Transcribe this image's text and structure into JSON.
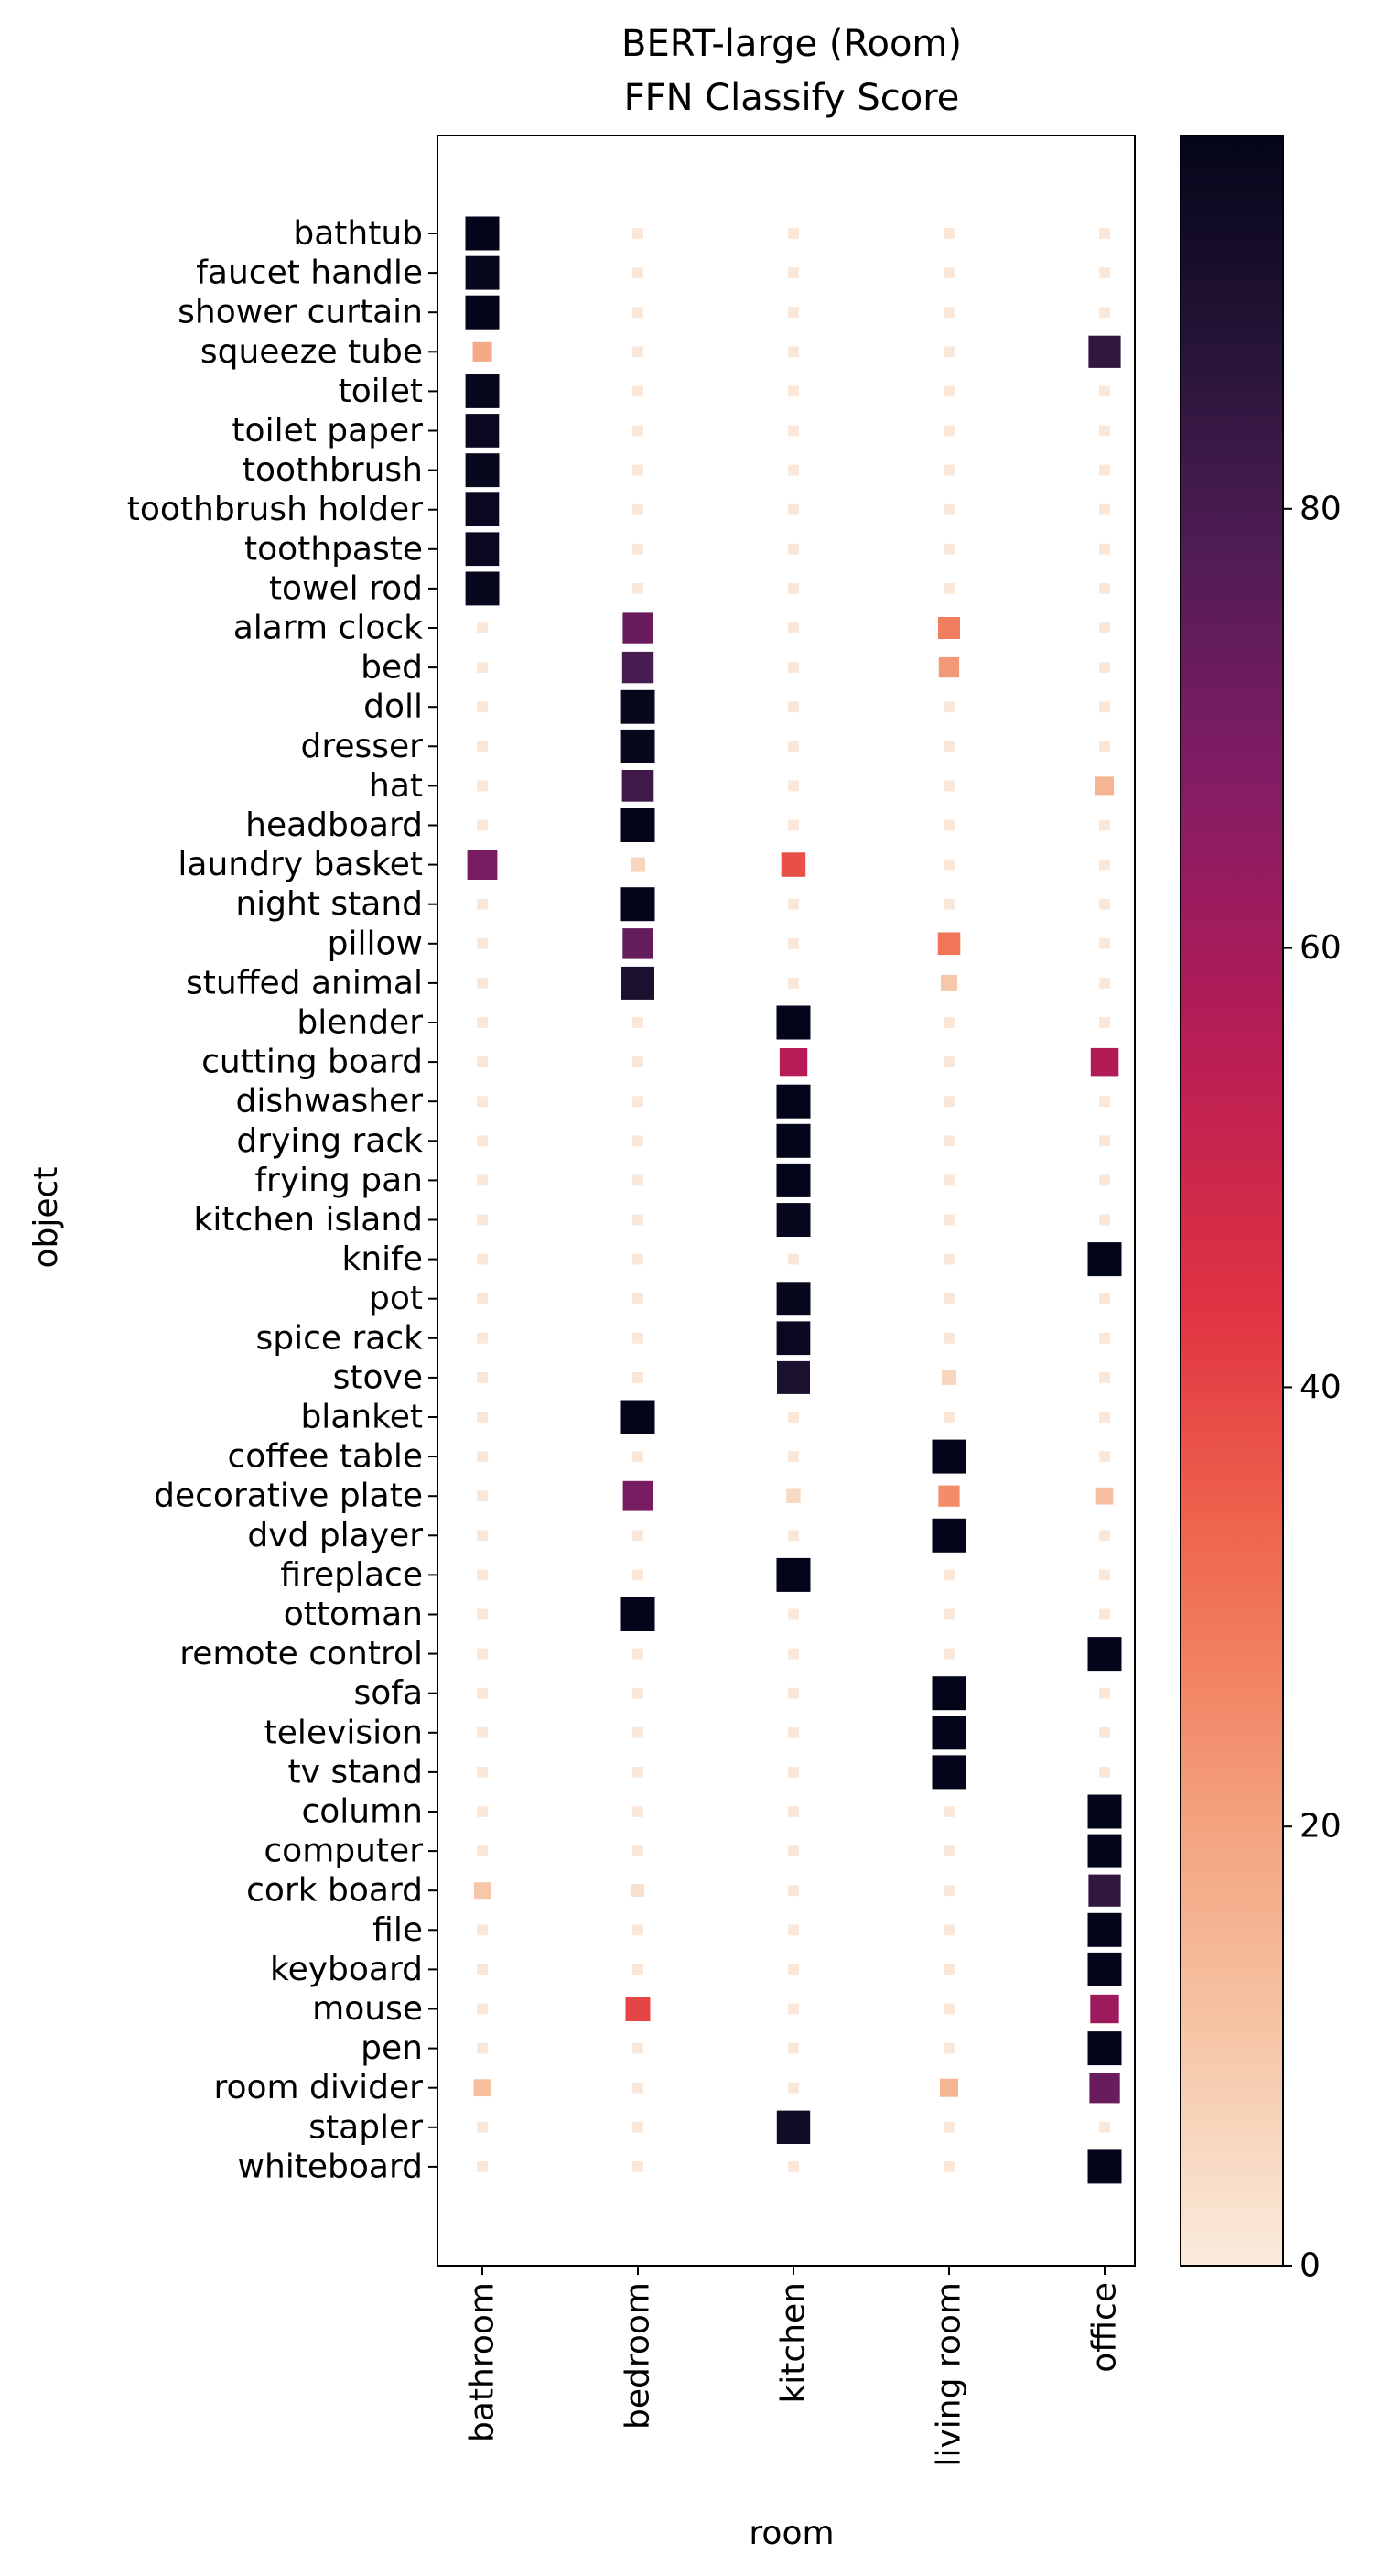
{
  "chart_data": {
    "type": "heatmap",
    "title": "BERT-large (Room)",
    "subtitle": "FFN Classify Score",
    "xlabel": "room",
    "ylabel": "object",
    "x_categories": [
      "bathroom",
      "bedroom",
      "kitchen",
      "living room",
      "office"
    ],
    "y_categories": [
      "bathtub",
      "faucet handle",
      "shower curtain",
      "squeeze tube",
      "toilet",
      "toilet paper",
      "toothbrush",
      "toothbrush holder",
      "toothpaste",
      "towel rod",
      "alarm clock",
      "bed",
      "doll",
      "dresser",
      "hat",
      "headboard",
      "laundry basket",
      "night stand",
      "pillow",
      "stuffed animal",
      "blender",
      "cutting board",
      "dishwasher",
      "drying rack",
      "frying pan",
      "kitchen island",
      "knife",
      "pot",
      "spice rack",
      "stove",
      "blanket",
      "coffee table",
      "decorative plate",
      "dvd player",
      "fireplace",
      "ottoman",
      "remote control",
      "sofa",
      "television",
      "tv stand",
      "column",
      "computer",
      "cork board",
      "file",
      "keyboard",
      "mouse",
      "pen",
      "room divider",
      "stapler",
      "whiteboard"
    ],
    "values": [
      [
        97,
        1,
        1,
        1,
        1
      ],
      [
        96,
        1,
        1,
        1,
        1
      ],
      [
        97,
        1,
        1,
        1,
        1
      ],
      [
        18,
        1,
        1,
        1,
        85
      ],
      [
        96,
        1,
        1,
        1,
        1
      ],
      [
        95,
        1,
        1,
        1,
        1
      ],
      [
        96,
        1,
        1,
        1,
        1
      ],
      [
        95,
        1,
        1,
        1,
        1
      ],
      [
        95,
        1,
        1,
        1,
        1
      ],
      [
        96,
        1,
        1,
        1,
        1
      ],
      [
        1,
        73,
        1,
        28,
        1
      ],
      [
        1,
        80,
        1,
        22,
        1
      ],
      [
        1,
        96,
        1,
        1,
        1
      ],
      [
        1,
        96,
        1,
        1,
        1
      ],
      [
        1,
        82,
        1,
        1,
        15
      ],
      [
        1,
        97,
        1,
        1,
        1
      ],
      [
        70,
        6,
        38,
        1,
        1
      ],
      [
        1,
        97,
        1,
        1,
        1
      ],
      [
        1,
        74,
        1,
        30,
        1
      ],
      [
        1,
        90,
        1,
        10,
        1
      ],
      [
        1,
        1,
        97,
        1,
        1
      ],
      [
        1,
        1,
        56,
        1,
        57
      ],
      [
        1,
        1,
        97,
        1,
        1
      ],
      [
        1,
        1,
        97,
        1,
        1
      ],
      [
        1,
        1,
        97,
        1,
        1
      ],
      [
        1,
        1,
        96,
        1,
        1
      ],
      [
        1,
        1,
        1,
        1,
        97
      ],
      [
        1,
        1,
        96,
        1,
        1
      ],
      [
        1,
        1,
        95,
        1,
        1
      ],
      [
        1,
        1,
        90,
        6,
        1
      ],
      [
        1,
        97,
        1,
        1,
        1
      ],
      [
        1,
        1,
        1,
        97,
        1
      ],
      [
        1,
        70,
        5,
        25,
        12
      ],
      [
        1,
        1,
        1,
        97,
        1
      ],
      [
        1,
        1,
        97,
        1,
        1
      ],
      [
        1,
        97,
        1,
        1,
        1
      ],
      [
        1,
        1,
        1,
        1,
        97
      ],
      [
        1,
        1,
        1,
        97,
        1
      ],
      [
        1,
        1,
        1,
        97,
        1
      ],
      [
        1,
        1,
        1,
        97,
        1
      ],
      [
        1,
        1,
        1,
        1,
        97
      ],
      [
        1,
        1,
        1,
        1,
        97
      ],
      [
        10,
        3,
        1,
        1,
        85
      ],
      [
        1,
        1,
        1,
        1,
        97
      ],
      [
        1,
        1,
        1,
        1,
        97
      ],
      [
        1,
        40,
        1,
        1,
        62
      ],
      [
        1,
        1,
        1,
        1,
        97
      ],
      [
        12,
        1,
        1,
        15,
        73
      ],
      [
        1,
        1,
        93,
        1,
        1
      ],
      [
        1,
        1,
        1,
        1,
        97
      ]
    ],
    "vmin": 0,
    "vmax": 97,
    "colormap": "rocket_r",
    "colorbar_ticks": [
      0,
      20,
      40,
      60,
      80
    ],
    "grid": false,
    "legend": "colorbar-right",
    "colors": {
      "low": "#faebdd",
      "mid": "#e13342",
      "high": "#03051a"
    }
  }
}
